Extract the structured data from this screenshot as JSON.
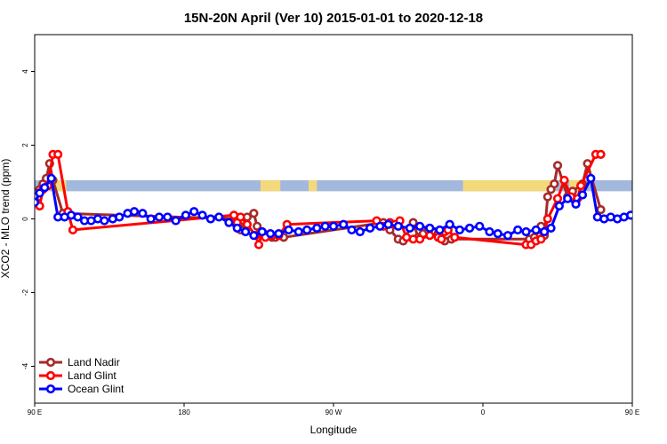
{
  "chart_data": {
    "type": "line",
    "title": "15N-20N April (Ver 10)   2015-01-01 to 2020-12-18",
    "xlabel": "Longitude",
    "ylabel": "XCO2 - MLO trend (ppm)",
    "xlim": [
      90,
      450
    ],
    "ylim": [
      -5,
      5
    ],
    "x_ticks": [
      {
        "value": 90,
        "label": "90 E"
      },
      {
        "value": 180,
        "label": "180"
      },
      {
        "value": 270,
        "label": "90 W"
      },
      {
        "value": 360,
        "label": "0"
      },
      {
        "value": 450,
        "label": "90 E"
      },
      {
        "value": 540,
        "label": "180"
      }
    ],
    "y_ticks": [
      {
        "value": -4,
        "label": "-4"
      },
      {
        "value": -2,
        "label": "-2"
      },
      {
        "value": 0,
        "label": "0"
      },
      {
        "value": 2,
        "label": "2"
      },
      {
        "value": 4,
        "label": "4"
      }
    ],
    "legend_position": "bottom-left",
    "land_mask_band": {
      "y_low": 0.75,
      "y_high": 1.05,
      "ocean_color": "#a2b9dd",
      "land_color": "#f3d97b",
      "land_segments": [
        [
          97,
          99
        ],
        [
          102,
          109
        ],
        [
          226,
          238
        ],
        [
          255,
          260
        ],
        [
          348,
          404
        ],
        [
          412,
          422
        ],
        [
          480,
          485
        ]
      ]
    },
    "series": [
      {
        "name": "Land Nadir",
        "color": "#a52a2a",
        "x": [
          91,
          93,
          95,
          97,
          99,
          101,
          107,
          212,
          214,
          216,
          218,
          222,
          224,
          226,
          228,
          231,
          233,
          235,
          238,
          240,
          300,
          304,
          309,
          312,
          318,
          321,
          324,
          327,
          331,
          333,
          337,
          341,
          388,
          391,
          393,
          395,
          397,
          399,
          401,
          403,
          405,
          411,
          414,
          420,
          423,
          431
        ],
        "y": [
          0.45,
          0.8,
          0.95,
          1.1,
          1.5,
          1.05,
          0.15,
          0.0,
          -0.3,
          -0.05,
          0.05,
          0.15,
          -0.2,
          -0.35,
          -0.4,
          -0.45,
          -0.5,
          -0.5,
          -0.45,
          -0.5,
          -0.1,
          -0.3,
          -0.55,
          -0.6,
          -0.1,
          -0.5,
          -0.4,
          -0.3,
          -0.35,
          -0.4,
          -0.6,
          -0.55,
          -0.55,
          -0.5,
          -0.3,
          -0.2,
          -0.45,
          0.6,
          0.8,
          0.95,
          1.45,
          0.6,
          0.75,
          0.95,
          1.5,
          0.25
        ]
      },
      {
        "name": "Land Glint",
        "color": "#ff0000",
        "x": [
          93,
          95,
          98,
          101,
          104,
          110,
          113,
          210,
          212,
          214,
          218,
          223,
          225,
          227,
          229,
          233,
          237,
          242,
          296,
          300,
          304,
          307,
          310,
          314,
          318,
          322,
          328,
          333,
          335,
          337,
          339,
          343,
          386,
          389,
          392,
          395,
          397,
          399,
          405,
          409,
          413,
          417,
          419,
          428,
          431
        ],
        "y": [
          0.35,
          0.8,
          0.9,
          1.75,
          1.75,
          0.2,
          -0.3,
          0.1,
          -0.1,
          0.05,
          -0.15,
          -0.45,
          -0.7,
          -0.35,
          -0.5,
          -0.45,
          -0.45,
          -0.15,
          -0.05,
          -0.2,
          -0.1,
          -0.15,
          -0.05,
          -0.5,
          -0.55,
          -0.55,
          -0.45,
          -0.5,
          -0.55,
          -0.35,
          -0.3,
          -0.5,
          -0.7,
          -0.7,
          -0.6,
          -0.55,
          -0.35,
          0.0,
          0.55,
          1.05,
          0.6,
          0.55,
          0.9,
          1.75,
          1.75
        ]
      },
      {
        "name": "Ocean Glint",
        "color": "#0000ff",
        "x": [
          90,
          93,
          96,
          100,
          104,
          108,
          112,
          116,
          120,
          124,
          128,
          132,
          137,
          141,
          146,
          150,
          155,
          160,
          165,
          170,
          175,
          181,
          186,
          191,
          196,
          201,
          207,
          212,
          217,
          222,
          227,
          232,
          237,
          243,
          249,
          254,
          260,
          265,
          270,
          276,
          281,
          286,
          292,
          298,
          303,
          309,
          316,
          322,
          328,
          334,
          340,
          346,
          352,
          358,
          364,
          369,
          375,
          381,
          386,
          392,
          397,
          401,
          406,
          411,
          416,
          420,
          425,
          429,
          433,
          437,
          441,
          445,
          449
        ],
        "y": [
          0.45,
          0.7,
          0.85,
          1.1,
          0.05,
          0.05,
          0.1,
          0.05,
          -0.05,
          -0.05,
          0.0,
          -0.05,
          0.0,
          0.05,
          0.15,
          0.2,
          0.15,
          0.0,
          0.05,
          0.05,
          -0.05,
          0.1,
          0.2,
          0.1,
          0.0,
          0.05,
          -0.1,
          -0.25,
          -0.35,
          -0.45,
          -0.35,
          -0.4,
          -0.4,
          -0.3,
          -0.35,
          -0.3,
          -0.25,
          -0.2,
          -0.2,
          -0.15,
          -0.3,
          -0.35,
          -0.25,
          -0.2,
          -0.15,
          -0.2,
          -0.25,
          -0.2,
          -0.25,
          -0.3,
          -0.15,
          -0.3,
          -0.25,
          -0.2,
          -0.35,
          -0.4,
          -0.45,
          -0.3,
          -0.35,
          -0.3,
          -0.35,
          -0.25,
          0.35,
          0.55,
          0.4,
          0.65,
          1.1,
          0.05,
          0.0,
          0.05,
          0.0,
          0.05,
          0.1
        ]
      }
    ]
  }
}
